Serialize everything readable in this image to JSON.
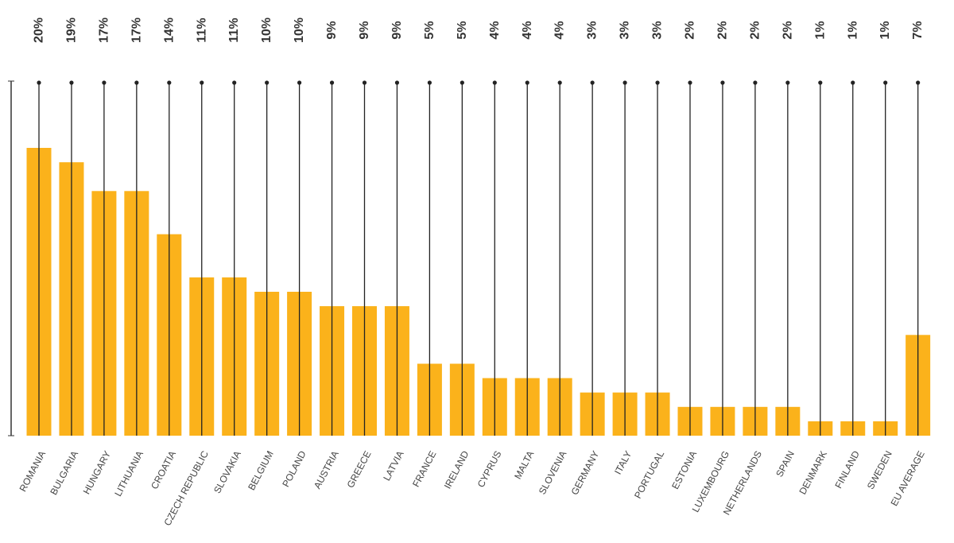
{
  "colors": {
    "bar": "#FBB21B",
    "stem": "#222222",
    "axis": "#333333",
    "value_label": "#333333",
    "category_label": "#444444"
  },
  "chart_data": {
    "type": "bar",
    "title": "",
    "xlabel": "",
    "ylabel": "",
    "ylim": [
      0,
      24.5
    ],
    "grid": false,
    "legend": "none",
    "categories": [
      "ROMANIA",
      "BULGARIA",
      "HUNGARY",
      "LITHUANIA",
      "CROATIA",
      "CZECH REPUBLIC",
      "SLOVAKIA",
      "BELGIUM",
      "POLAND",
      "AUSTRIA",
      "GREECE",
      "LATVIA",
      "FRANCE",
      "IRELAND",
      "CYPRUS",
      "MALTA",
      "SLOVENIA",
      "GERMANY",
      "ITALY",
      "PORTUGAL",
      "ESTONIA",
      "LUXEMBOURG",
      "NETHERLANDS",
      "SPAIN",
      "DENMARK",
      "FINLAND",
      "SWEDEN",
      "EU AVERAGE"
    ],
    "values": [
      20,
      19,
      17,
      17,
      14,
      11,
      11,
      10,
      10,
      9,
      9,
      9,
      5,
      5,
      4,
      4,
      4,
      3,
      3,
      3,
      2,
      2,
      2,
      2,
      1,
      1,
      1,
      7
    ],
    "value_labels": [
      "20%",
      "19%",
      "17%",
      "17%",
      "14%",
      "11%",
      "11%",
      "10%",
      "10%",
      "9%",
      "9%",
      "9%",
      "5%",
      "5%",
      "4%",
      "4%",
      "4%",
      "3%",
      "3%",
      "3%",
      "2%",
      "2%",
      "2%",
      "2%",
      "1%",
      "1%",
      "1%",
      "7%"
    ]
  }
}
